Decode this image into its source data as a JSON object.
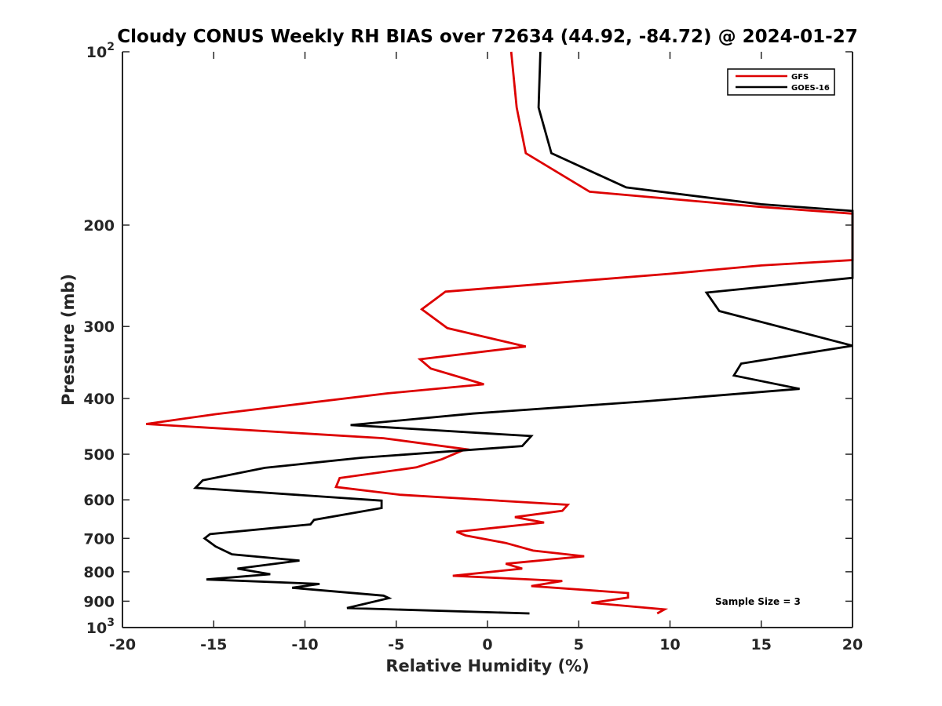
{
  "chart_data": {
    "type": "line",
    "title": "Cloudy CONUS Weekly RH BIAS over 72634 (44.92, -84.72) @ 2024-01-27",
    "xlabel": "Relative Humidity (%)",
    "ylabel": "Pressure (mb)",
    "xlim": [
      -20,
      20
    ],
    "ylim": [
      100,
      1000
    ],
    "y_scale": "log",
    "y_reversed": true,
    "xticks": [
      "-20",
      "-15",
      "-10",
      "-5",
      "0",
      "5",
      "10",
      "15",
      "20"
    ],
    "xtick_values": [
      -20,
      -15,
      -10,
      -5,
      0,
      5,
      10,
      15,
      20
    ],
    "yticks": [
      {
        "value": 100,
        "base": "10",
        "exp": "2"
      },
      {
        "value": 200,
        "label": "200"
      },
      {
        "value": 300,
        "label": "300"
      },
      {
        "value": 400,
        "label": "400"
      },
      {
        "value": 500,
        "label": "500"
      },
      {
        "value": 600,
        "label": "600"
      },
      {
        "value": 700,
        "label": "700"
      },
      {
        "value": 800,
        "label": "800"
      },
      {
        "value": 900,
        "label": "900"
      },
      {
        "value": 1000,
        "base": "10",
        "exp": "3"
      }
    ],
    "grid": false,
    "legend_position": "top-right",
    "annotation": "Sample Size = 3",
    "series": [
      {
        "name": "GFS",
        "color": "#dd0000",
        "points": [
          [
            1.3,
            100
          ],
          [
            1.6,
            125
          ],
          [
            2.1,
            150
          ],
          [
            5.6,
            175
          ],
          [
            15,
            186
          ],
          [
            20,
            191
          ],
          [
            20,
            230
          ],
          [
            15,
            235
          ],
          [
            10,
            243
          ],
          [
            -2.3,
            261
          ],
          [
            -3.6,
            280
          ],
          [
            -2.2,
            302
          ],
          [
            2.1,
            325
          ],
          [
            -3.7,
            342
          ],
          [
            -3.1,
            355
          ],
          [
            -0.2,
            378
          ],
          [
            -5.5,
            392
          ],
          [
            -9.5,
            406
          ],
          [
            -14.9,
            426
          ],
          [
            -18.7,
            443
          ],
          [
            -5.7,
            469
          ],
          [
            -1.2,
            490
          ],
          [
            -2.5,
            510
          ],
          [
            -3.9,
            527
          ],
          [
            -8.1,
            550
          ],
          [
            -8.3,
            570
          ],
          [
            -4.8,
            588
          ],
          [
            4.4,
            612
          ],
          [
            4.1,
            627
          ],
          [
            1.5,
            643
          ],
          [
            3.1,
            657
          ],
          [
            -1.7,
            682
          ],
          [
            -1.2,
            692
          ],
          [
            1.0,
            713
          ],
          [
            2.5,
            735
          ],
          [
            5.3,
            752
          ],
          [
            1.0,
            775
          ],
          [
            1.9,
            790
          ],
          [
            -1.9,
            813
          ],
          [
            4.1,
            830
          ],
          [
            2.4,
            847
          ],
          [
            7.7,
            871
          ],
          [
            7.7,
            887
          ],
          [
            5.7,
            906
          ],
          [
            9.7,
            930
          ],
          [
            9.3,
            945
          ]
        ]
      },
      {
        "name": "GOES-16",
        "color": "#000000",
        "points": [
          [
            2.9,
            100
          ],
          [
            2.8,
            125
          ],
          [
            3.5,
            150
          ],
          [
            7.6,
            172
          ],
          [
            15,
            184
          ],
          [
            18,
            187
          ],
          [
            20,
            189
          ],
          [
            20,
            247
          ],
          [
            12,
            262
          ],
          [
            12.7,
            282
          ],
          [
            20,
            324
          ],
          [
            13.9,
            348
          ],
          [
            13.5,
            365
          ],
          [
            17.1,
            385
          ],
          [
            8.5,
            405
          ],
          [
            -0.8,
            425
          ],
          [
            -7.5,
            445
          ],
          [
            2.4,
            465
          ],
          [
            1.9,
            484
          ],
          [
            -6.9,
            507
          ],
          [
            -12.2,
            528
          ],
          [
            -15.6,
            555
          ],
          [
            -16.0,
            572
          ],
          [
            -5.8,
            602
          ],
          [
            -5.8,
            620
          ],
          [
            -9.5,
            650
          ],
          [
            -9.7,
            662
          ],
          [
            -15.2,
            688
          ],
          [
            -15.5,
            700
          ],
          [
            -14.9,
            723
          ],
          [
            -14.0,
            746
          ],
          [
            -10.3,
            765
          ],
          [
            -13.7,
            790
          ],
          [
            -11.9,
            808
          ],
          [
            -15.4,
            825
          ],
          [
            -9.2,
            840
          ],
          [
            -10.7,
            853
          ],
          [
            -5.7,
            880
          ],
          [
            -5.4,
            889
          ],
          [
            -7.7,
            925
          ],
          [
            2.3,
            945
          ]
        ]
      }
    ]
  }
}
